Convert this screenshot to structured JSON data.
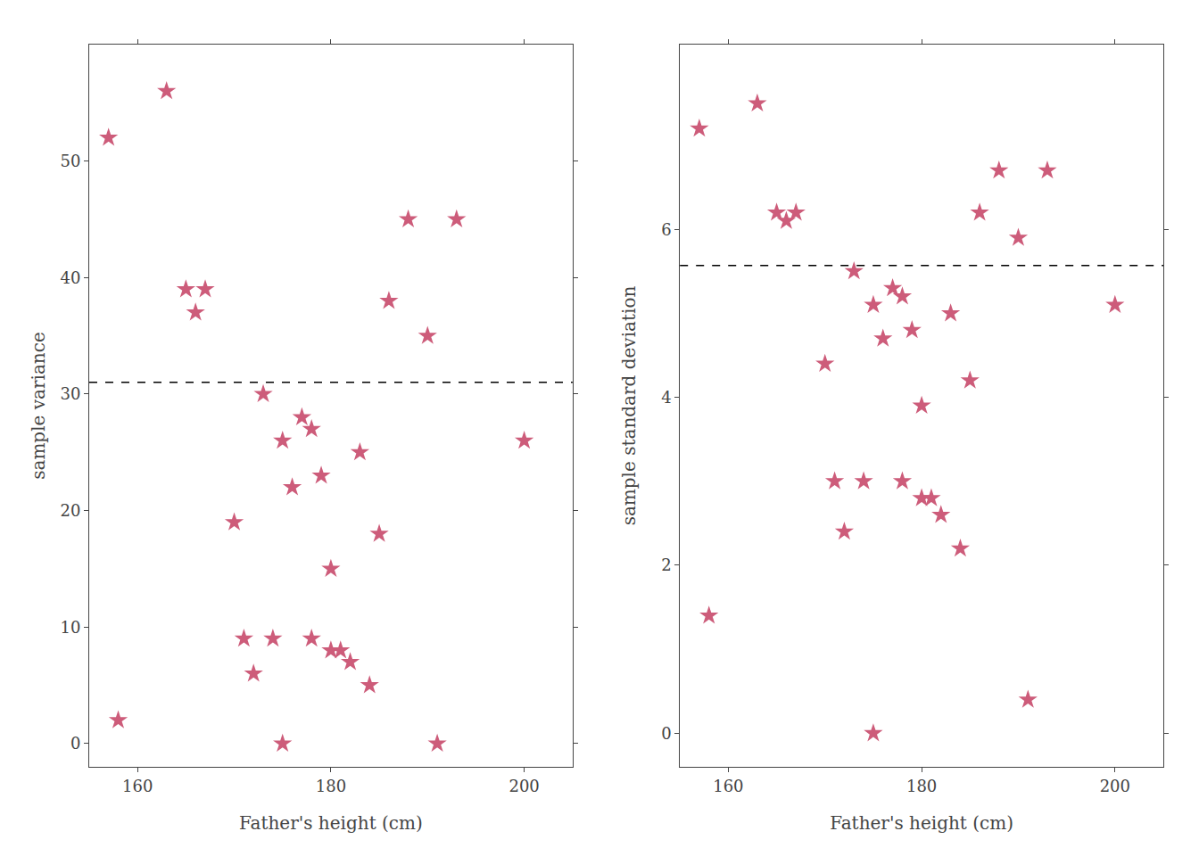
{
  "chart_data": [
    {
      "type": "scatter",
      "x": [
        157,
        158,
        163,
        165,
        166,
        167,
        170,
        171,
        172,
        173,
        174,
        175,
        175,
        176,
        177,
        178,
        178,
        179,
        180,
        180,
        181,
        182,
        183,
        184,
        185,
        186,
        188,
        190,
        191,
        193,
        200
      ],
      "values": [
        52,
        2,
        56,
        39,
        37,
        39,
        19,
        9,
        6,
        30,
        9,
        26,
        0,
        22,
        28,
        27,
        9,
        23,
        15,
        8,
        8,
        7,
        25,
        5,
        18,
        38,
        45,
        35,
        0,
        45,
        26
      ],
      "color": "#cd5c7a",
      "marker": "star",
      "xlabel": "Father's height (cm)",
      "ylabel": "sample variance",
      "xlim": [
        155,
        205
      ],
      "xticks": [
        160,
        180,
        200
      ],
      "ylim": [
        -2,
        60
      ],
      "yticks": [
        0,
        10,
        20,
        30,
        40,
        50
      ],
      "hline": {
        "value": 31.0,
        "color": "black",
        "line_style": "dashed"
      },
      "grid": false
    },
    {
      "type": "scatter",
      "x": [
        157,
        158,
        163,
        165,
        166,
        167,
        170,
        171,
        172,
        173,
        174,
        175,
        175,
        176,
        177,
        178,
        178,
        179,
        180,
        180,
        181,
        182,
        183,
        184,
        185,
        186,
        188,
        190,
        191,
        193,
        200
      ],
      "values": [
        7.2,
        1.4,
        7.5,
        6.2,
        6.1,
        6.2,
        4.4,
        3.0,
        2.4,
        5.5,
        3.0,
        5.1,
        0.0,
        4.7,
        5.3,
        5.2,
        3.0,
        4.8,
        3.9,
        2.8,
        2.8,
        2.6,
        5.0,
        2.2,
        4.2,
        6.2,
        6.7,
        5.9,
        0.4,
        6.7,
        5.1
      ],
      "color": "#cd5c7a",
      "marker": "star",
      "xlabel": "Father's height (cm)",
      "ylabel": "sample standard deviation",
      "xlim": [
        155,
        205
      ],
      "xticks": [
        160,
        180,
        200
      ],
      "ylim": [
        -0.4,
        8.2
      ],
      "yticks": [
        0,
        2,
        4,
        6
      ],
      "hline": {
        "value": 5.57,
        "color": "black",
        "line_style": "dashed"
      },
      "grid": false
    }
  ]
}
